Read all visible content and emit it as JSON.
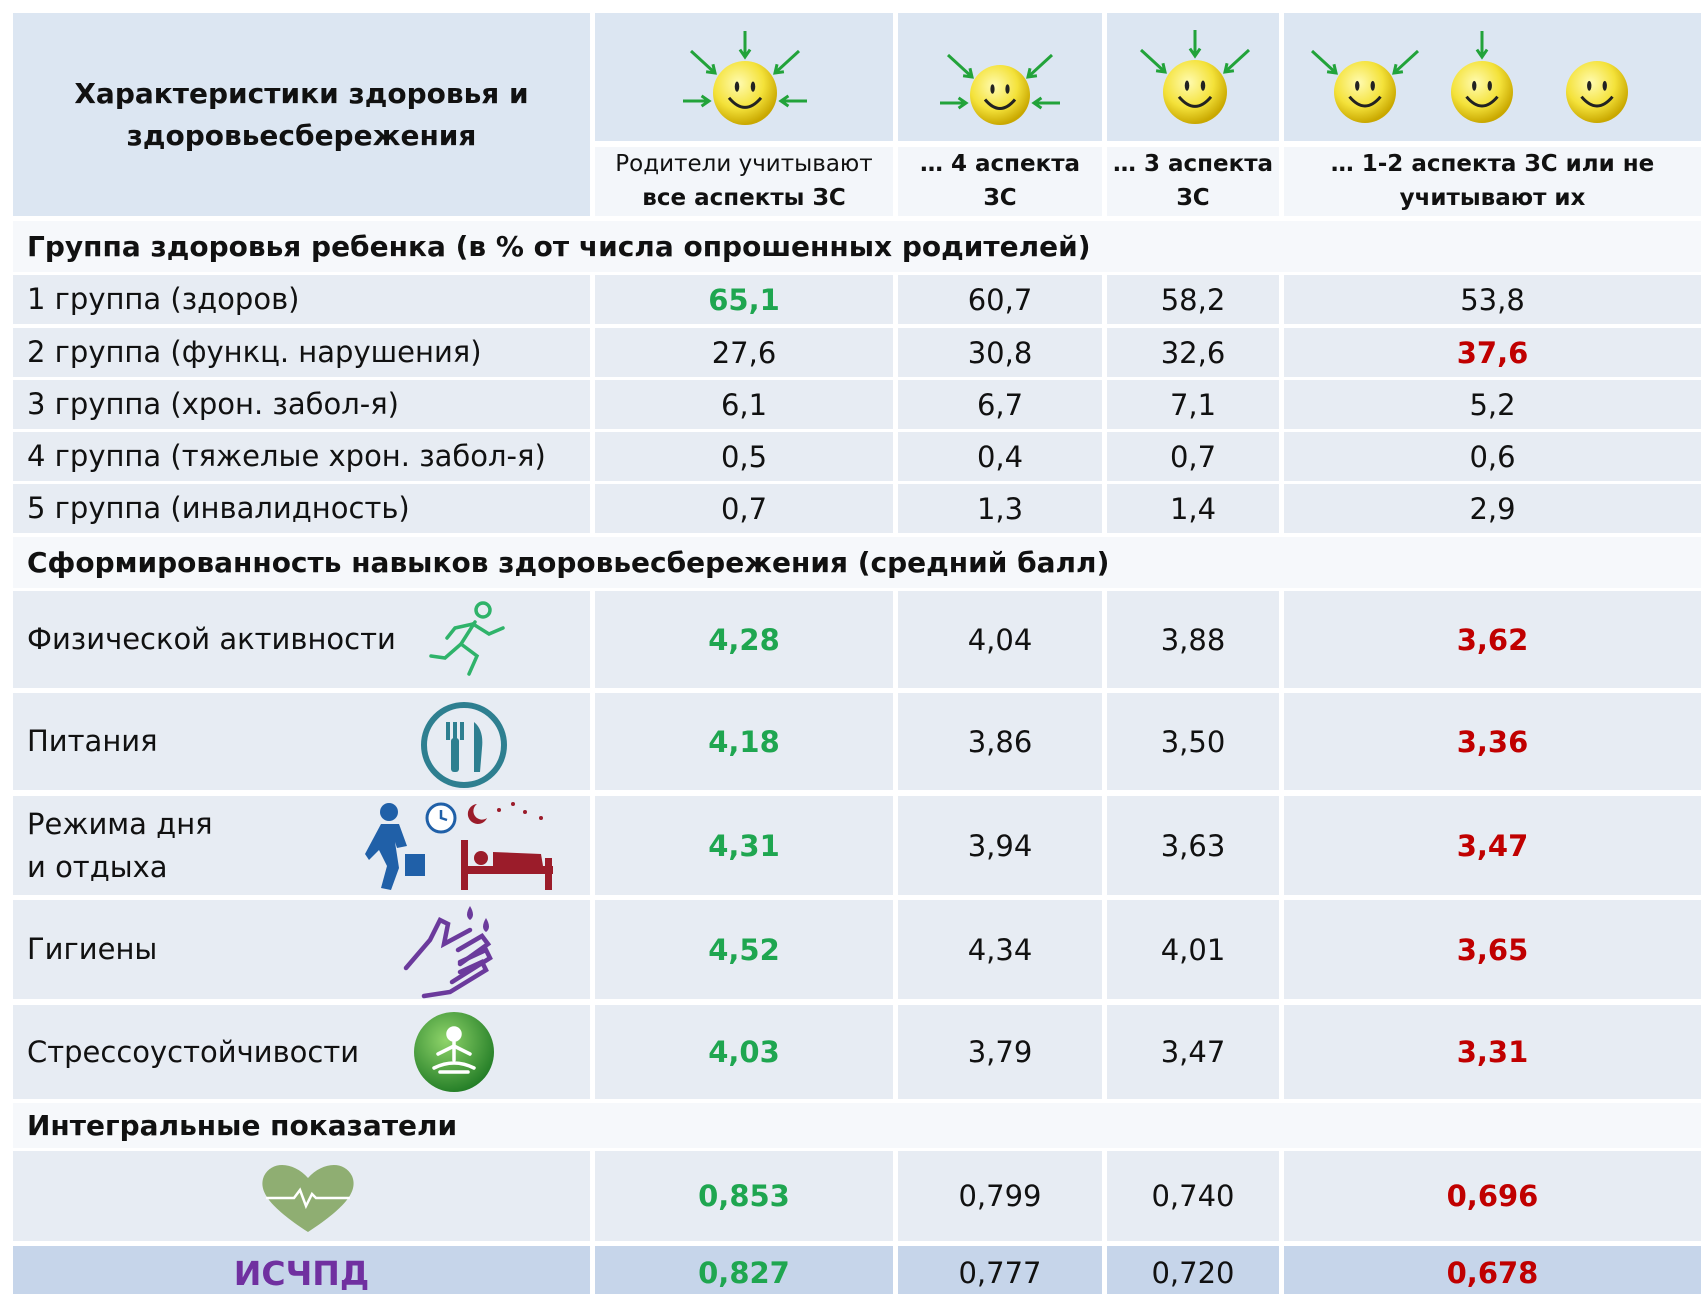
{
  "header": {
    "title": "Характеристики здоровья и здоровьесбережения",
    "columns": [
      {
        "lines": [
          "Родители учитывают",
          "все аспекты ЗС"
        ],
        "bold": [
          false,
          true
        ]
      },
      {
        "lines": [
          "… 4 аспекта",
          "ЗС"
        ],
        "bold": [
          true,
          true
        ]
      },
      {
        "lines": [
          "… 3 аспекта",
          "ЗС"
        ],
        "bold": [
          true,
          true
        ]
      },
      {
        "lines": [
          "… 1-2 аспекта ЗС или не",
          "учитывают их"
        ],
        "bold": [
          true,
          true
        ]
      }
    ]
  },
  "colors": {
    "good": "#1fa650",
    "bad": "#c00000",
    "none": "#111111"
  },
  "sections": [
    {
      "title": "Группа здоровья ребенка (в % от числа опрошенных родителей)",
      "rows": [
        {
          "label": "1 группа (здоров)",
          "values": [
            "65,1",
            "60,7",
            "58,2",
            "53,8"
          ],
          "emphasis": [
            "good",
            "none",
            "none",
            "none"
          ]
        },
        {
          "label": "2 группа (функц. нарушения)",
          "values": [
            "27,6",
            "30,8",
            "32,6",
            "37,6"
          ],
          "emphasis": [
            "none",
            "none",
            "none",
            "bad"
          ]
        },
        {
          "label": "3 группа (хрон. забол-я)",
          "values": [
            "6,1",
            "6,7",
            "7,1",
            "5,2"
          ],
          "emphasis": [
            "none",
            "none",
            "none",
            "none"
          ]
        },
        {
          "label": "4 группа (тяжелые хрон. забол-я)",
          "values": [
            "0,5",
            "0,4",
            "0,7",
            "0,6"
          ],
          "emphasis": [
            "none",
            "none",
            "none",
            "none"
          ]
        },
        {
          "label": "5 группа (инвалидность)",
          "values": [
            "0,7",
            "1,3",
            "1,4",
            "2,9"
          ],
          "emphasis": [
            "none",
            "none",
            "none",
            "none"
          ]
        }
      ]
    },
    {
      "title": "Сформированность навыков здоровьесбережения (средний балл)",
      "rows": [
        {
          "label": "Физической активности",
          "values": [
            "4,28",
            "4,04",
            "3,88",
            "3,62"
          ],
          "emphasis": [
            "good",
            "none",
            "none",
            "bad"
          ]
        },
        {
          "label": "Питания",
          "values": [
            "4,18",
            "3,86",
            "3,50",
            "3,36"
          ],
          "emphasis": [
            "good",
            "none",
            "none",
            "bad"
          ]
        },
        {
          "label": "Режима дня\nи отдыха",
          "values": [
            "4,31",
            "3,94",
            "3,63",
            "3,47"
          ],
          "emphasis": [
            "good",
            "none",
            "none",
            "bad"
          ]
        },
        {
          "label": "Гигиены",
          "values": [
            "4,52",
            "4,34",
            "4,01",
            "3,65"
          ],
          "emphasis": [
            "good",
            "none",
            "none",
            "bad"
          ]
        },
        {
          "label": "Стрессоустойчивости",
          "values": [
            "4,03",
            "3,79",
            "3,47",
            "3,31"
          ],
          "emphasis": [
            "good",
            "none",
            "none",
            "bad"
          ]
        }
      ]
    },
    {
      "title": "Интегральные показатели",
      "rows": [
        {
          "values": [
            "0,853",
            "0,799",
            "0,740",
            "0,696"
          ],
          "emphasis": [
            "good",
            "none",
            "none",
            "bad"
          ]
        },
        {
          "label": "ИСЧПД",
          "values": [
            "0,827",
            "0,777",
            "0,720",
            "0,678"
          ],
          "emphasis": [
            "good",
            "none",
            "none",
            "bad"
          ]
        }
      ]
    }
  ]
}
